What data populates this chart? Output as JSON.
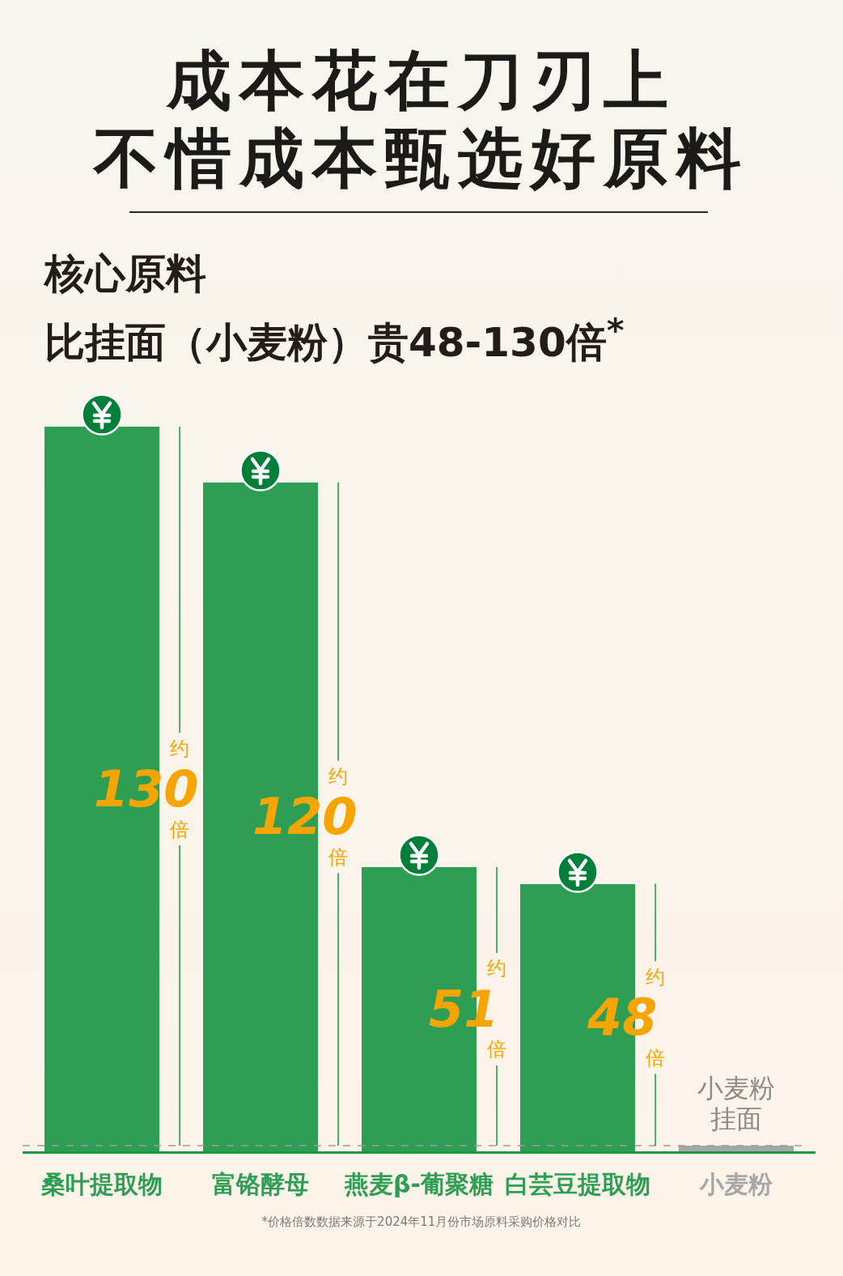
{
  "chart_data": {
    "type": "bar",
    "title": "成本花在刀刃上",
    "subtitle": "不惜成本甄选好原料",
    "categories": [
      "桑叶提取物",
      "富铬酵母",
      "燕麦β-葡聚糖",
      "白芸豆提取物",
      "小麦粉"
    ],
    "values": [
      130,
      120,
      51,
      48,
      1
    ],
    "colors": [
      "#2f9e55",
      "#2f9e55",
      "#2f9e55",
      "#2f9e55",
      "#a6a6a6"
    ],
    "value_labels": [
      "约\n130\n倍",
      "约\n120\n倍",
      "约\n51\n倍",
      "约\n48\n倍",
      null
    ],
    "ylim": [
      0,
      130
    ],
    "tick_labels": "x",
    "ref_lines": [
      {
        "axis": "y",
        "value": 1,
        "color": "#9a9a9a",
        "line_style": "dashed"
      }
    ],
    "annotations": [
      "核心原料",
      "比挂面（小麦粉）贵48-130倍$^{*}$",
      "*价格倍数数据来源于2024年11月份市场原料采购价格对比",
      {
        "text": "小麦粉挂面",
        "x": "小麦粉",
        "y": 1
      }
    ]
  }
}
